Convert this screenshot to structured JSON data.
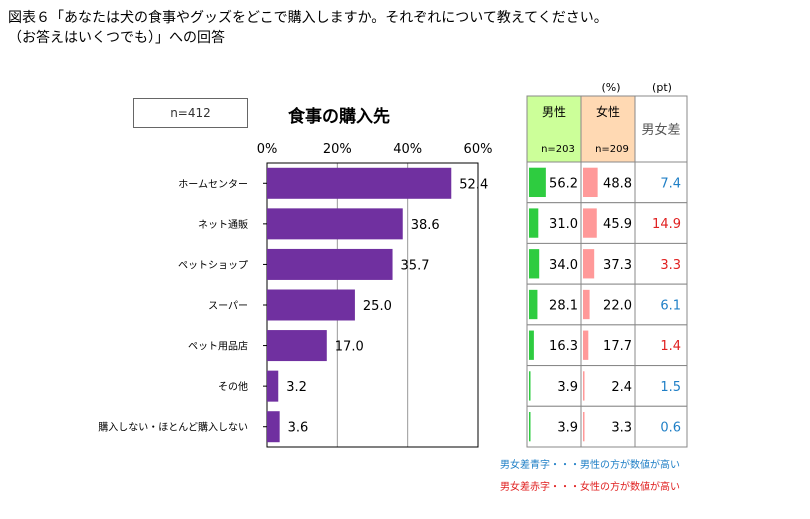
{
  "header": {
    "title_line1": "図表６「あなたは犬の食事やグッズをどこで購入しますか。それぞれについて教えてください。",
    "title_line2": "（お答えはいくつでも）」への回答"
  },
  "chart_data": {
    "type": "bar",
    "orientation": "horizontal",
    "title": "食事の購入先",
    "sample_label": "n=412",
    "categories": [
      "ホームセンター",
      "ネット通販",
      "ペットショップ",
      "スーパー",
      "ペット用品店",
      "その他",
      "購入しない・ほとんど購入しない"
    ],
    "values": [
      52.4,
      38.6,
      35.7,
      25.0,
      17.0,
      3.2,
      3.6
    ],
    "xlim": [
      0,
      60
    ],
    "xticks": [
      "0%",
      "20%",
      "40%",
      "60%"
    ],
    "bar_color": "#7030a0",
    "table": {
      "unit_pct": "(%)",
      "unit_pt": "(pt)",
      "male": {
        "label": "男性",
        "n": "n=203",
        "values": [
          56.2,
          31.0,
          34.0,
          28.1,
          16.3,
          3.9,
          3.9
        ],
        "bar_color": "#2ecc40",
        "bg": "#ccff99"
      },
      "female": {
        "label": "女性",
        "n": "n=209",
        "values": [
          48.8,
          45.9,
          37.3,
          22.0,
          17.7,
          2.4,
          3.3
        ],
        "bar_color": "#ff9999",
        "bg": "#ffd9b3"
      },
      "diff": {
        "label": "男女差",
        "values": [
          "7.4",
          "14.9",
          "3.3",
          "6.1",
          "1.4",
          "1.5",
          "0.6"
        ],
        "higher": [
          "male",
          "female",
          "female",
          "male",
          "female",
          "male",
          "male"
        ]
      }
    },
    "colors": {
      "male_higher": "#1f7fc6",
      "female_higher": "#e02020"
    }
  },
  "notes": {
    "blue_note": "男女差青字・・・男性の方が数値が高い",
    "red_note": "男女差赤字・・・女性の方が数値が高い"
  }
}
